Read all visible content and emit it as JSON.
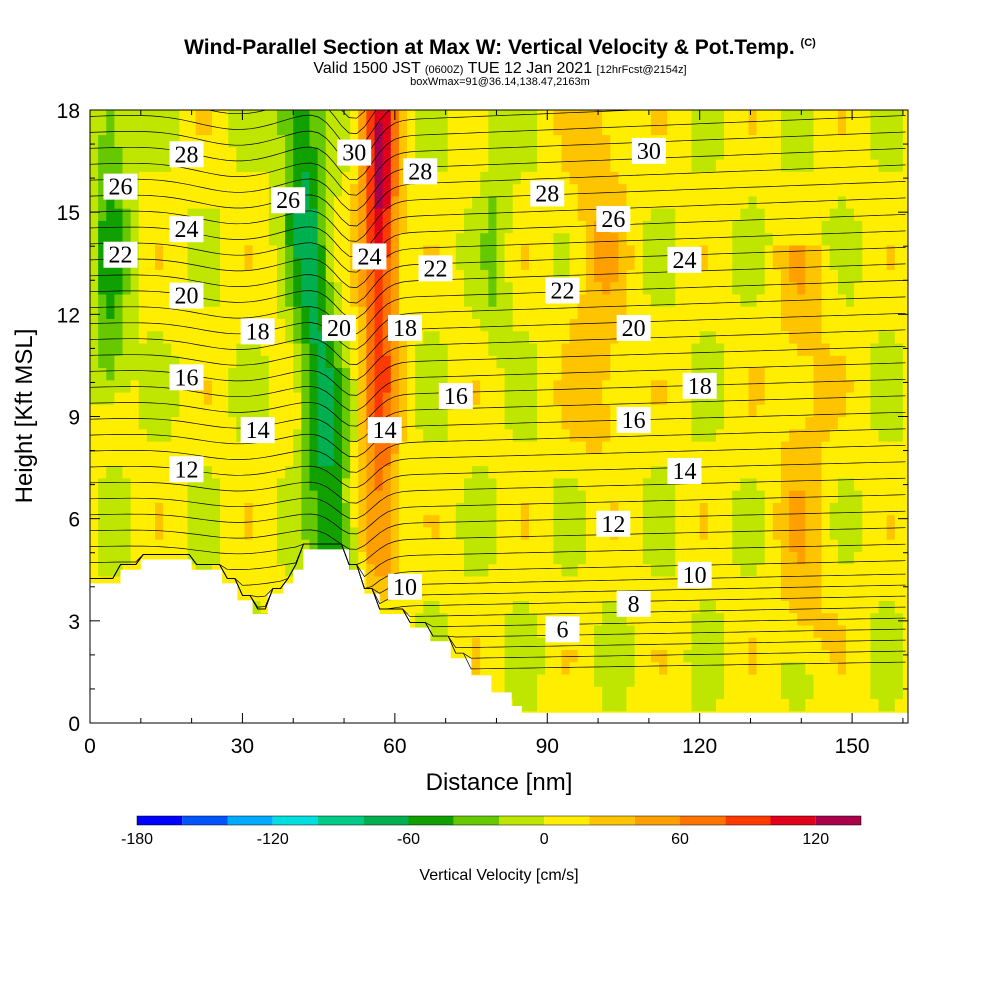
{
  "header": {
    "title_main": "Wind-Parallel Section at Max W: Vertical Velocity & Pot.Temp.",
    "title_unit": "(C)",
    "valid_prefix": "Valid 1500 JST",
    "valid_utc": "(0600Z)",
    "valid_date": "TUE 12 Jan 2021",
    "forecast": "[12hrFcst@2154z]",
    "box_info": "boxWmax=91@36.14,138.47,2163m"
  },
  "colors": {
    "terrain": "#ffffff",
    "contour": "#000000",
    "colorbar": [
      "#0000ff",
      "#0055ff",
      "#00aaff",
      "#00dfdf",
      "#00cc88",
      "#00b050",
      "#10a000",
      "#66c800",
      "#bfe600",
      "#ffee00",
      "#ffc400",
      "#ffa000",
      "#ff7400",
      "#ff3a00",
      "#e0001c",
      "#a8004a",
      "#6a0080"
    ]
  },
  "chart_data": {
    "type": "heatmap",
    "xlabel": "Distance [nm]",
    "ylabel": "Height [Kft MSL]",
    "xlim": [
      0,
      161
    ],
    "ylim": [
      0,
      18
    ],
    "xticks": [
      "0",
      "30",
      "60",
      "90",
      "120",
      "150"
    ],
    "yticks": [
      "0",
      "3",
      "6",
      "9",
      "12",
      "15",
      "18"
    ],
    "colorbar": {
      "label": "Vertical Velocity [cm/s]",
      "ticks": [
        "-180",
        "-120",
        "-60",
        "0",
        "60",
        "120"
      ],
      "tick_values": [
        -180,
        -120,
        -60,
        0,
        60,
        120
      ],
      "bounds": [
        -180,
        -160,
        -140,
        -120,
        -100,
        -80,
        -60,
        -40,
        -20,
        0,
        20,
        40,
        60,
        80,
        100,
        120,
        140
      ]
    },
    "terrain_kft": [
      [
        0,
        4.1
      ],
      [
        6,
        4.1
      ],
      [
        6,
        4.5
      ],
      [
        10,
        4.5
      ],
      [
        10,
        4.8
      ],
      [
        20,
        4.8
      ],
      [
        20,
        4.5
      ],
      [
        26,
        4.5
      ],
      [
        26,
        4.1
      ],
      [
        29,
        4.1
      ],
      [
        29,
        3.6
      ],
      [
        32,
        3.6
      ],
      [
        32,
        3.2
      ],
      [
        35,
        3.2
      ],
      [
        35,
        3.8
      ],
      [
        38,
        3.8
      ],
      [
        38,
        4.1
      ],
      [
        40,
        4.1
      ],
      [
        40,
        4.5
      ],
      [
        42,
        4.5
      ],
      [
        42,
        5.1
      ],
      [
        51,
        5.1
      ],
      [
        51,
        4.5
      ],
      [
        54,
        4.5
      ],
      [
        54,
        3.8
      ],
      [
        57,
        3.8
      ],
      [
        57,
        3.2
      ],
      [
        63,
        3.2
      ],
      [
        63,
        2.8
      ],
      [
        67,
        2.8
      ],
      [
        67,
        2.4
      ],
      [
        71,
        2.4
      ],
      [
        71,
        1.9
      ],
      [
        75,
        1.9
      ],
      [
        75,
        1.4
      ],
      [
        79,
        1.4
      ],
      [
        79,
        0.9
      ],
      [
        83,
        0.9
      ],
      [
        83,
        0.5
      ],
      [
        85,
        0.5
      ],
      [
        85,
        0.3
      ],
      [
        161,
        0.3
      ]
    ],
    "w_features": [
      {
        "x": 57,
        "y_bottom": 5.1,
        "y_top": 18,
        "w_cms": 120,
        "halfwidth_nm": 2.5
      },
      {
        "x": 48,
        "y_bottom": 5.1,
        "y_top": 18,
        "w_cms": -70,
        "halfwidth_nm": 3.0
      },
      {
        "x": 4,
        "y_bottom": 10.5,
        "y_top": 18,
        "w_cms": -45,
        "halfwidth_nm": 2.5
      },
      {
        "x": 100,
        "y_bottom": 9.0,
        "y_top": 18,
        "w_cms": 30,
        "halfwidth_nm": 4.0
      },
      {
        "x": 140,
        "y_bottom": 3.0,
        "y_top": 14,
        "w_cms": 25,
        "halfwidth_nm": 4.0
      },
      {
        "x": 80,
        "y_bottom": 12.0,
        "y_top": 18,
        "w_cms": -25,
        "halfwidth_nm": 2.0
      }
    ],
    "theta_contours": [
      {
        "theta": 6,
        "label_x": 93,
        "label_y": 2.75
      },
      {
        "theta": 8,
        "label_x": 107,
        "label_y": 3.5
      },
      {
        "theta": 10,
        "label_x": 62,
        "label_y": 4.0
      },
      {
        "theta": 10,
        "label_x": 119,
        "label_y": 4.35
      },
      {
        "theta": 12,
        "label_x": 19,
        "label_y": 7.45
      },
      {
        "theta": 12,
        "label_x": 103,
        "label_y": 5.85
      },
      {
        "theta": 14,
        "label_x": 33,
        "label_y": 8.6
      },
      {
        "theta": 14,
        "label_x": 58,
        "label_y": 8.6
      },
      {
        "theta": 14,
        "label_x": 117,
        "label_y": 7.4
      },
      {
        "theta": 16,
        "label_x": 19,
        "label_y": 10.15
      },
      {
        "theta": 16,
        "label_x": 72,
        "label_y": 9.6
      },
      {
        "theta": 16,
        "label_x": 107,
        "label_y": 8.9
      },
      {
        "theta": 18,
        "label_x": 33,
        "label_y": 11.5
      },
      {
        "theta": 18,
        "label_x": 62,
        "label_y": 11.6
      },
      {
        "theta": 18,
        "label_x": 120,
        "label_y": 9.9
      },
      {
        "theta": 20,
        "label_x": 19,
        "label_y": 12.55
      },
      {
        "theta": 20,
        "label_x": 49,
        "label_y": 11.6
      },
      {
        "theta": 20,
        "label_x": 107,
        "label_y": 11.6
      },
      {
        "theta": 22,
        "label_x": 6,
        "label_y": 13.75
      },
      {
        "theta": 22,
        "label_x": 68,
        "label_y": 13.35
      },
      {
        "theta": 22,
        "label_x": 93,
        "label_y": 12.7
      },
      {
        "theta": 24,
        "label_x": 19,
        "label_y": 14.5
      },
      {
        "theta": 24,
        "label_x": 55,
        "label_y": 13.7
      },
      {
        "theta": 24,
        "label_x": 117,
        "label_y": 13.6
      },
      {
        "theta": 26,
        "label_x": 6,
        "label_y": 15.75
      },
      {
        "theta": 26,
        "label_x": 39,
        "label_y": 15.35
      },
      {
        "theta": 26,
        "label_x": 103,
        "label_y": 14.8
      },
      {
        "theta": 28,
        "label_x": 19,
        "label_y": 16.7
      },
      {
        "theta": 28,
        "label_x": 65,
        "label_y": 16.2
      },
      {
        "theta": 28,
        "label_x": 90,
        "label_y": 15.55
      },
      {
        "theta": 30,
        "label_x": 52,
        "label_y": 16.75
      },
      {
        "theta": 30,
        "label_x": 110,
        "label_y": 16.8
      }
    ]
  }
}
